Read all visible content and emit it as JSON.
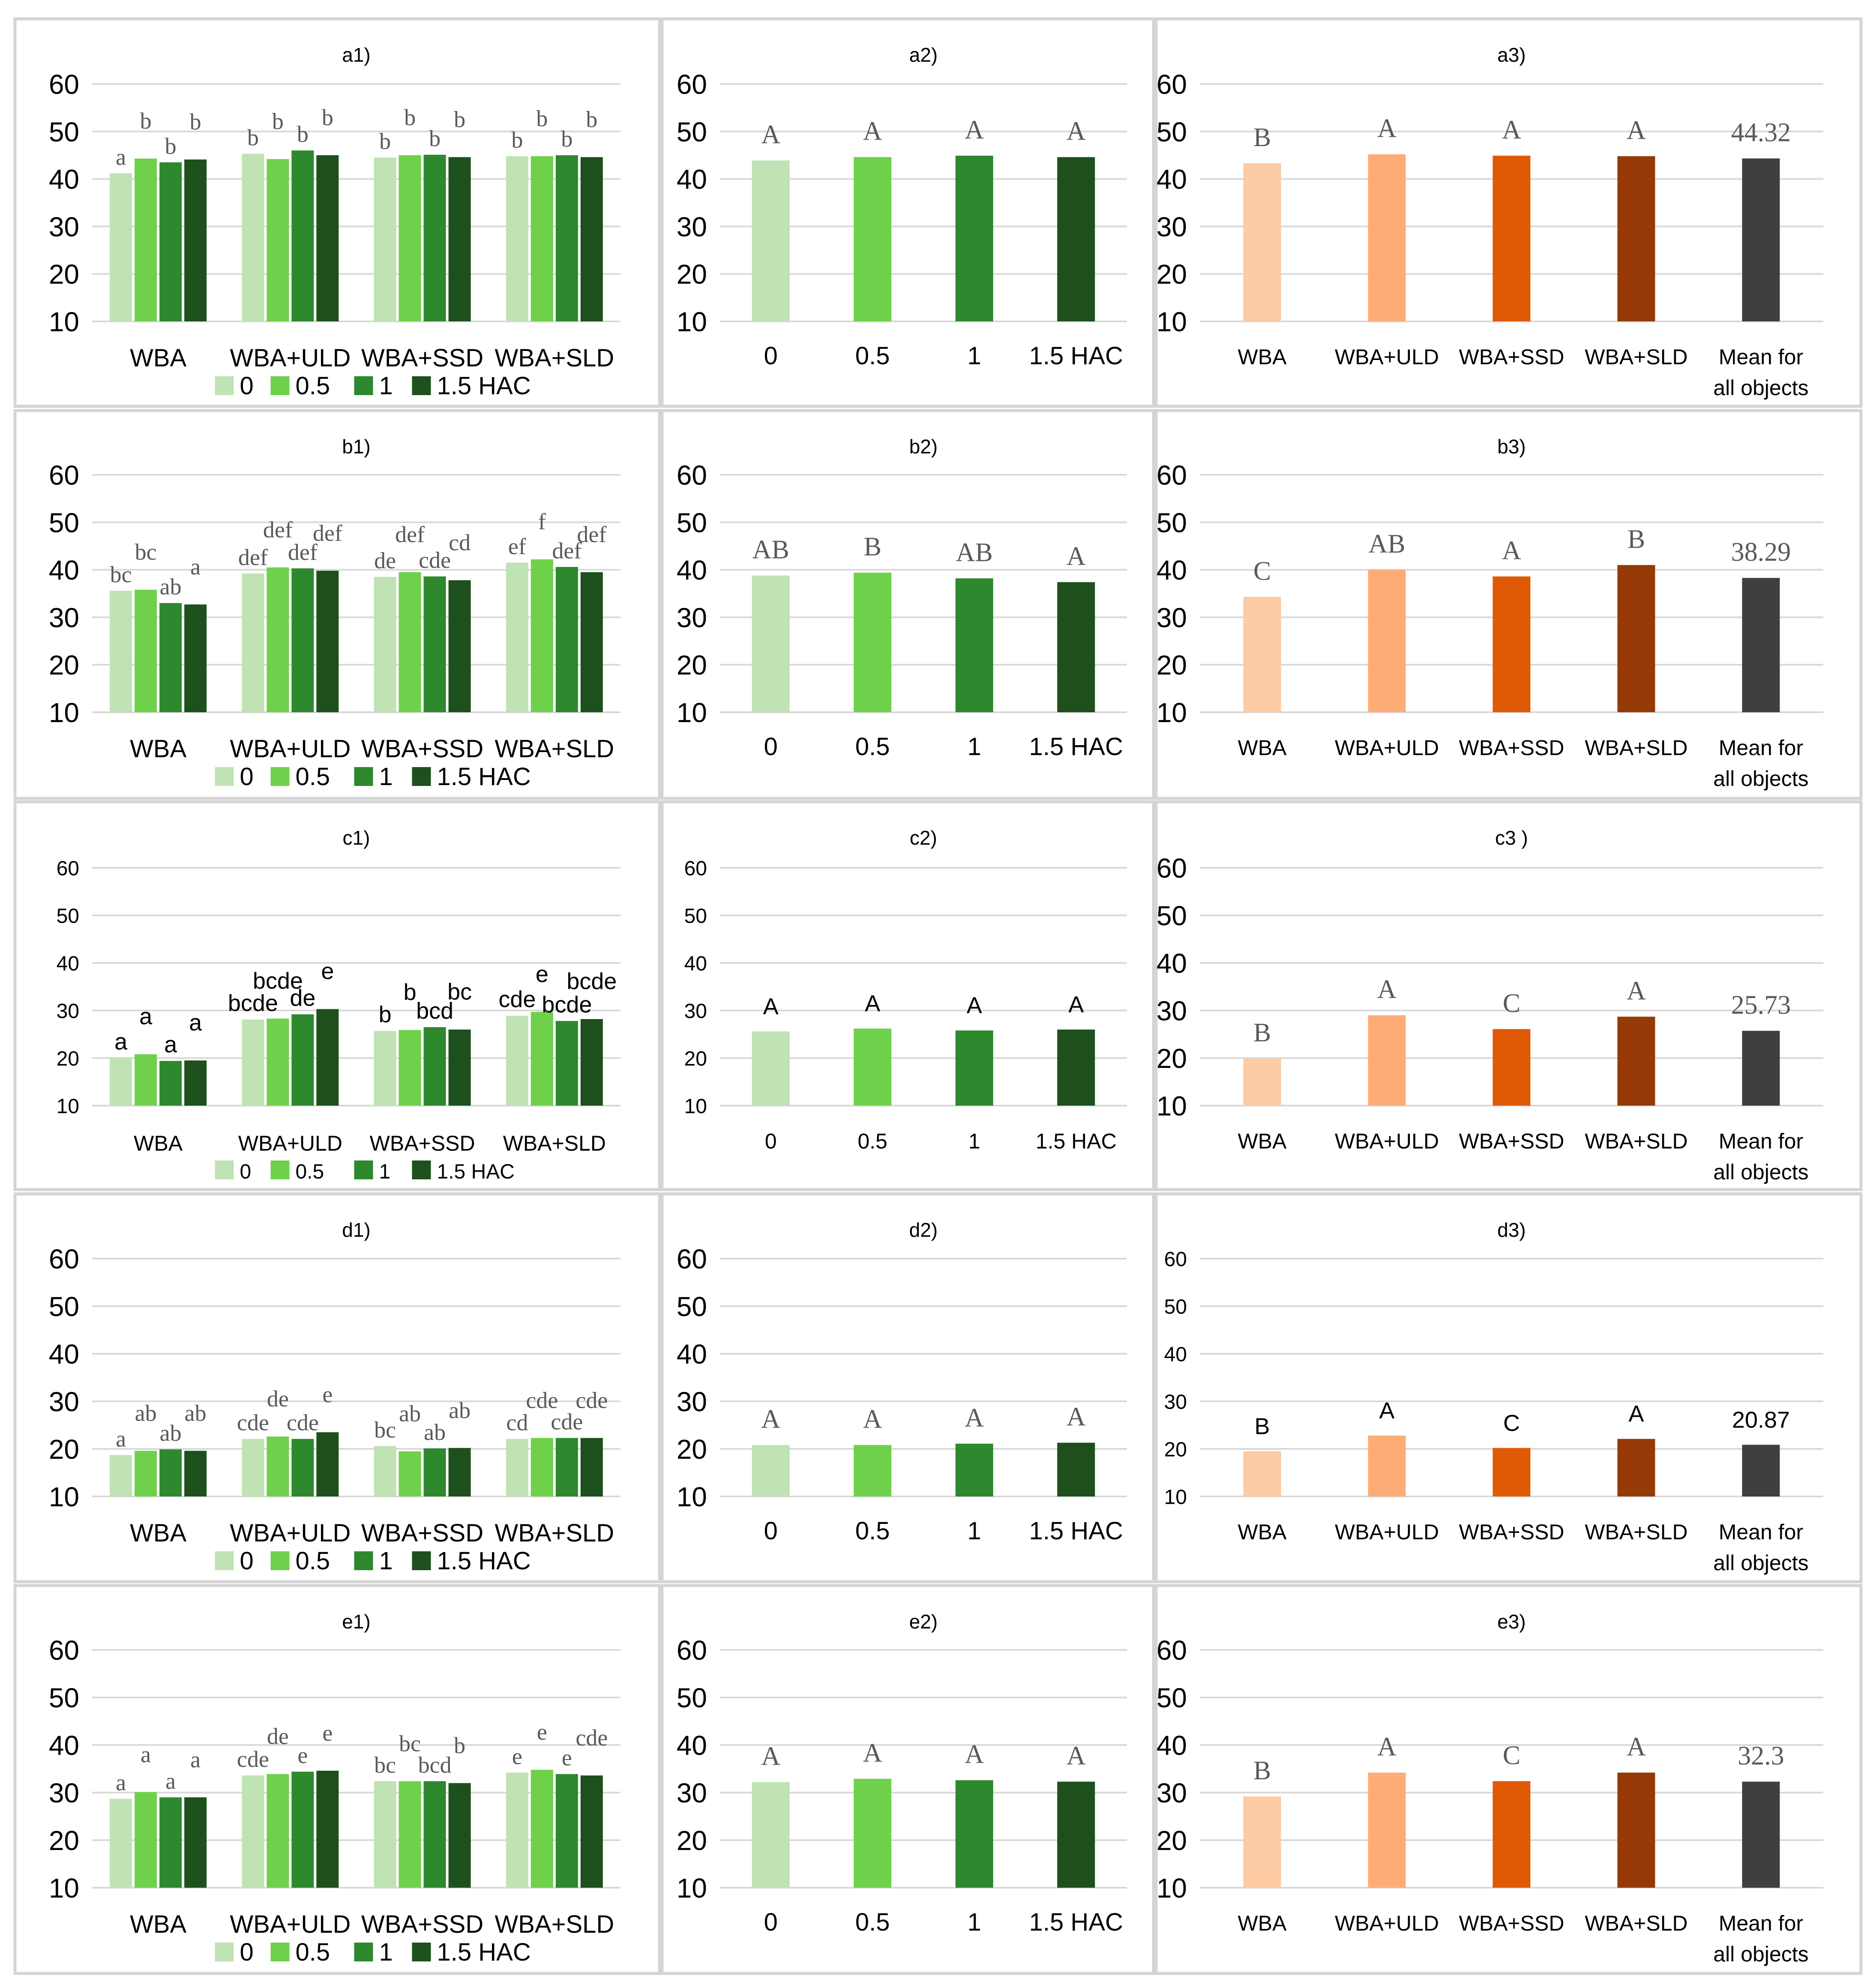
{
  "colors": {
    "green": [
      "#bfe3b4",
      "#6fd14b",
      "#2e882e",
      "#1d501d"
    ],
    "orange": [
      "#fdcba4",
      "#fdac78",
      "#e05a06",
      "#953a06",
      "#3f3f3f"
    ],
    "grid": "#d9d9d9",
    "label_gray": "#595959"
  },
  "legend": {
    "entries": [
      "0",
      "0.5",
      "1",
      "1.5 HAC"
    ]
  },
  "chart_data": [
    {
      "id": "a1",
      "type": "bar",
      "title": "a1)",
      "layout": "grouped",
      "label_font": "serif",
      "yticks": [
        "10",
        "20",
        "30",
        "40",
        "50",
        "60"
      ],
      "ylim": [
        10,
        60
      ],
      "categories": [
        "WBA",
        "WBA+ULD",
        "WBA+SSD",
        "WBA+SLD"
      ],
      "series": [
        {
          "name": "0",
          "values": [
            41.2,
            45.3,
            44.5,
            44.8
          ],
          "labels": [
            "a",
            "b",
            "b",
            "b"
          ]
        },
        {
          "name": "0.5",
          "values": [
            44.3,
            44.2,
            45.0,
            44.8
          ],
          "labels": [
            "b",
            "b",
            "b",
            "b"
          ]
        },
        {
          "name": "1",
          "values": [
            43.5,
            46.0,
            45.1,
            45.0
          ],
          "labels": [
            "b",
            "b",
            "b",
            "b"
          ]
        },
        {
          "name": "1.5 HAC",
          "values": [
            44.1,
            45.0,
            44.6,
            44.6
          ],
          "labels": [
            "b",
            "b",
            "b",
            "b"
          ]
        }
      ]
    },
    {
      "id": "a2",
      "type": "bar",
      "title": "a2)",
      "layout": "simple",
      "palette": "green",
      "label_font": "serif",
      "yticks": [
        "10",
        "20",
        "30",
        "40",
        "50",
        "60"
      ],
      "ylim": [
        10,
        60
      ],
      "categories": [
        "0",
        "0.5",
        "1",
        "1.5 HAC"
      ],
      "values": [
        43.9,
        44.6,
        44.9,
        44.6
      ],
      "labels": [
        "A",
        "A",
        "A",
        "A"
      ]
    },
    {
      "id": "a3",
      "type": "bar",
      "title": "a3)",
      "layout": "simple",
      "palette": "orange",
      "label_font": "serif",
      "yticks": [
        "10",
        "20",
        "30",
        "40",
        "50",
        "60"
      ],
      "ylim": [
        10,
        60
      ],
      "categories": [
        "WBA",
        "WBA+ULD",
        "WBA+SSD",
        "WBA+SLD",
        "Mean for all objects"
      ],
      "values": [
        43.3,
        45.2,
        44.9,
        44.8,
        44.32
      ],
      "labels": [
        "B",
        "A",
        "A",
        "A",
        "44.32"
      ]
    },
    {
      "id": "b1",
      "type": "bar",
      "title": "b1)",
      "layout": "grouped",
      "label_font": "serif",
      "yticks": [
        "10",
        "20",
        "30",
        "40",
        "50",
        "60"
      ],
      "ylim": [
        10,
        60
      ],
      "categories": [
        "WBA",
        "WBA+ULD",
        "WBA+SSD",
        "WBA+SLD"
      ],
      "series": [
        {
          "name": "0",
          "values": [
            35.6,
            39.2,
            38.5,
            41.5
          ],
          "labels": [
            "bc",
            "def",
            "de",
            "ef"
          ]
        },
        {
          "name": "0.5",
          "values": [
            35.8,
            40.5,
            39.5,
            42.2
          ],
          "labels": [
            "bc",
            "def",
            "def",
            "f"
          ]
        },
        {
          "name": "1",
          "values": [
            33.0,
            40.3,
            38.6,
            40.6
          ],
          "labels": [
            "ab",
            "def",
            "cde",
            "def"
          ]
        },
        {
          "name": "1.5 HAC",
          "values": [
            32.7,
            39.8,
            37.8,
            39.5
          ],
          "labels": [
            "a",
            "def",
            "cd",
            "def"
          ]
        }
      ]
    },
    {
      "id": "b2",
      "type": "bar",
      "title": "b2)",
      "layout": "simple",
      "palette": "green",
      "label_font": "serif",
      "yticks": [
        "10",
        "20",
        "30",
        "40",
        "50",
        "60"
      ],
      "ylim": [
        10,
        60
      ],
      "categories": [
        "0",
        "0.5",
        "1",
        "1.5 HAC"
      ],
      "values": [
        38.8,
        39.4,
        38.2,
        37.4
      ],
      "labels": [
        "AB",
        "B",
        "AB",
        "A"
      ]
    },
    {
      "id": "b3",
      "type": "bar",
      "title": "b3)",
      "layout": "simple",
      "palette": "orange",
      "label_font": "serif",
      "yticks": [
        "10",
        "20",
        "30",
        "40",
        "50",
        "60"
      ],
      "ylim": [
        10,
        60
      ],
      "categories": [
        "WBA",
        "WBA+ULD",
        "WBA+SSD",
        "WBA+SLD",
        "Mean for all objects"
      ],
      "values": [
        34.3,
        40.0,
        38.6,
        41.0,
        38.29
      ],
      "labels": [
        "C",
        "AB",
        "A",
        "B",
        "38.29"
      ]
    },
    {
      "id": "c1",
      "type": "bar",
      "title": "c1)",
      "layout": "grouped",
      "label_font": "sans",
      "yticks": [
        "10",
        "20",
        "30",
        "40",
        "50",
        "60"
      ],
      "ylim": [
        10,
        60
      ],
      "categories": [
        "WBA",
        "WBA+ULD",
        "WBA+SSD",
        "WBA+SLD"
      ],
      "series": [
        {
          "name": "0",
          "values": [
            20.0,
            28.1,
            25.7,
            28.9
          ],
          "labels": [
            "a",
            "bcde",
            "b",
            "cde"
          ]
        },
        {
          "name": "0.5",
          "values": [
            20.8,
            28.3,
            25.9,
            29.7
          ],
          "labels": [
            "a",
            "bcde",
            "b",
            "e"
          ]
        },
        {
          "name": "1",
          "values": [
            19.4,
            29.2,
            26.5,
            27.8
          ],
          "labels": [
            "a",
            "de",
            "bcd",
            "bcde"
          ]
        },
        {
          "name": "1.5 HAC",
          "values": [
            19.5,
            30.3,
            26.0,
            28.2
          ],
          "labels": [
            "a",
            "e",
            "bc",
            "bcde"
          ]
        }
      ]
    },
    {
      "id": "c2",
      "type": "bar",
      "title": "c2)",
      "layout": "simple",
      "palette": "green",
      "label_font": "sans",
      "yticks": [
        "10",
        "20",
        "30",
        "40",
        "50",
        "60"
      ],
      "ylim": [
        10,
        60
      ],
      "categories": [
        "0",
        "0.5",
        "1",
        "1.5 HAC"
      ],
      "values": [
        25.6,
        26.2,
        25.8,
        26.0
      ],
      "labels": [
        "A",
        "A",
        "A",
        "A"
      ]
    },
    {
      "id": "c3",
      "type": "bar",
      "title": "c3 )",
      "layout": "simple",
      "palette": "orange",
      "label_font": "serif",
      "yticks": [
        "10",
        "20",
        "30",
        "40",
        "50",
        "60"
      ],
      "ylim": [
        10,
        60
      ],
      "categories": [
        "WBA",
        "WBA+ULD",
        "WBA+SSD",
        "WBA+SLD",
        "Mean for all objects"
      ],
      "values": [
        19.9,
        29.0,
        26.1,
        28.7,
        25.73
      ],
      "labels": [
        "B",
        "A",
        "C",
        "A",
        "25.73"
      ]
    },
    {
      "id": "d1",
      "type": "bar",
      "title": "d1)",
      "layout": "grouped",
      "label_font": "serif",
      "yticks": [
        "10",
        "20",
        "30",
        "40",
        "50",
        "60"
      ],
      "ylim": [
        10,
        60
      ],
      "categories": [
        "WBA",
        "WBA+ULD",
        "WBA+SSD",
        "WBA+SLD"
      ],
      "series": [
        {
          "name": "0",
          "values": [
            18.7,
            22.1,
            20.6,
            22.1
          ],
          "labels": [
            "a",
            "cde",
            "bc",
            "cd"
          ]
        },
        {
          "name": "0.5",
          "values": [
            19.6,
            22.6,
            19.5,
            22.3
          ],
          "labels": [
            "ab",
            "de",
            "ab",
            "cde"
          ]
        },
        {
          "name": "1",
          "values": [
            19.9,
            22.1,
            20.1,
            22.3
          ],
          "labels": [
            "ab",
            "cde",
            "ab",
            "cde"
          ]
        },
        {
          "name": "1.5 HAC",
          "values": [
            19.6,
            23.5,
            20.2,
            22.3
          ],
          "labels": [
            "ab",
            "e",
            "ab",
            "cde"
          ]
        }
      ]
    },
    {
      "id": "d2",
      "type": "bar",
      "title": "d2)",
      "layout": "simple",
      "palette": "green",
      "label_font": "serif",
      "yticks": [
        "10",
        "20",
        "30",
        "40",
        "50",
        "60"
      ],
      "ylim": [
        10,
        60
      ],
      "categories": [
        "0",
        "0.5",
        "1",
        "1.5 HAC"
      ],
      "values": [
        20.8,
        20.8,
        21.1,
        21.3
      ],
      "labels": [
        "A",
        "A",
        "A",
        "A"
      ]
    },
    {
      "id": "d3",
      "type": "bar",
      "title": "d3)",
      "layout": "simple",
      "palette": "orange",
      "label_font": "sans",
      "yticks": [
        "10",
        "20",
        "30",
        "40",
        "50",
        "60"
      ],
      "ylim": [
        10,
        60
      ],
      "categories": [
        "WBA",
        "WBA+ULD",
        "WBA+SSD",
        "WBA+SLD",
        "Mean for all objects"
      ],
      "values": [
        19.5,
        22.8,
        20.2,
        22.1,
        20.87
      ],
      "labels": [
        "B",
        "A",
        "C",
        "A",
        "20.87"
      ]
    },
    {
      "id": "e1",
      "type": "bar",
      "title": "e1)",
      "layout": "grouped",
      "label_font": "serif",
      "yticks": [
        "10",
        "20",
        "30",
        "40",
        "50",
        "60"
      ],
      "ylim": [
        10,
        60
      ],
      "categories": [
        "WBA",
        "WBA+ULD",
        "WBA+SSD",
        "WBA+SLD"
      ],
      "series": [
        {
          "name": "0",
          "values": [
            28.7,
            33.6,
            32.4,
            34.2
          ],
          "labels": [
            "a",
            "cde",
            "bc",
            "e"
          ]
        },
        {
          "name": "0.5",
          "values": [
            30.1,
            33.9,
            32.4,
            34.8
          ],
          "labels": [
            "a",
            "de",
            "bc",
            "e"
          ]
        },
        {
          "name": "1",
          "values": [
            29.0,
            34.4,
            32.4,
            33.9
          ],
          "labels": [
            "a",
            "e",
            "bcd",
            "e"
          ]
        },
        {
          "name": "1.5 HAC",
          "values": [
            29.0,
            34.6,
            32.0,
            33.6
          ],
          "labels": [
            "a",
            "e",
            "b",
            "cde"
          ]
        }
      ]
    },
    {
      "id": "e2",
      "type": "bar",
      "title": "e2)",
      "layout": "simple",
      "palette": "green",
      "label_font": "serif",
      "yticks": [
        "10",
        "20",
        "30",
        "40",
        "50",
        "60"
      ],
      "ylim": [
        10,
        60
      ],
      "categories": [
        "0",
        "0.5",
        "1",
        "1.5 HAC"
      ],
      "values": [
        32.2,
        32.9,
        32.6,
        32.3
      ],
      "labels": [
        "A",
        "A",
        "A",
        "A"
      ]
    },
    {
      "id": "e3",
      "type": "bar",
      "title": "e3)",
      "layout": "simple",
      "palette": "orange",
      "label_font": "serif",
      "yticks": [
        "10",
        "20",
        "30",
        "40",
        "50",
        "60"
      ],
      "ylim": [
        10,
        60
      ],
      "categories": [
        "WBA",
        "WBA+ULD",
        "WBA+SSD",
        "WBA+SLD",
        "Mean for all objects"
      ],
      "values": [
        29.2,
        34.2,
        32.4,
        34.2,
        32.3
      ],
      "labels": [
        "B",
        "A",
        "C",
        "A",
        "32.3"
      ]
    }
  ]
}
